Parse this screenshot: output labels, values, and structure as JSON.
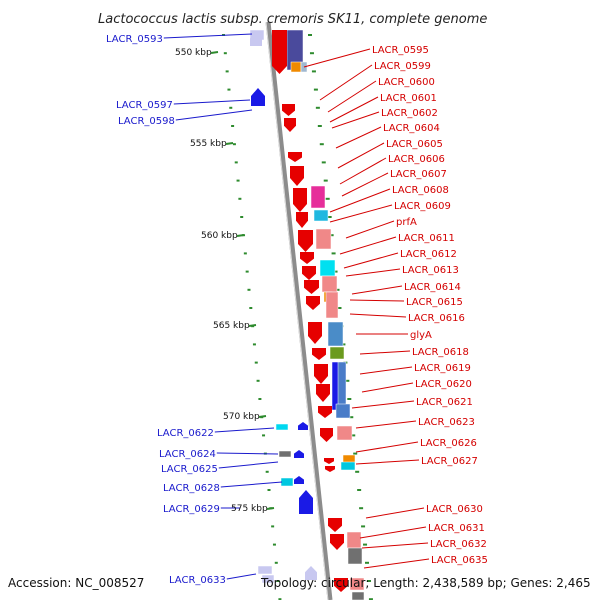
{
  "title": "Lactococcus lactis subsp. cremoris SK11, complete genome",
  "accession_text": "Accession: NC_008527",
  "topology_text": "Topology: circular; Length: 2,438,589 bp; Genes: 2,465",
  "colors": {
    "forward": "#e60000",
    "reverse": "#1a1ae6",
    "label_right": "#d40000",
    "label_left": "#1a1acc",
    "tick": "#2e8b2e"
  },
  "scale_labels": [
    "550 kbp",
    "555 kbp",
    "560 kbp",
    "565 kbp",
    "570 kbp",
    "575 kbp"
  ],
  "right_labels": [
    "LACR_0595",
    "LACR_0599",
    "LACR_0600",
    "LACR_0601",
    "LACR_0602",
    "LACR_0604",
    "LACR_0605",
    "LACR_0606",
    "LACR_0607",
    "LACR_0608",
    "LACR_0609",
    "prfA",
    "LACR_0611",
    "LACR_0612",
    "LACR_0613",
    "LACR_0614",
    "LACR_0615",
    "LACR_0616",
    "glyA",
    "LACR_0618",
    "LACR_0619",
    "LACR_0620",
    "LACR_0621",
    "LACR_0623",
    "LACR_0626",
    "LACR_0627",
    "LACR_0630",
    "LACR_0631",
    "LACR_0632",
    "LACR_0635"
  ],
  "left_labels": [
    "LACR_0593",
    "LACR_0597",
    "LACR_0598",
    "LACR_0622",
    "LACR_0624",
    "LACR_0625",
    "LACR_0628",
    "LACR_0629",
    "LACR_0633"
  ]
}
